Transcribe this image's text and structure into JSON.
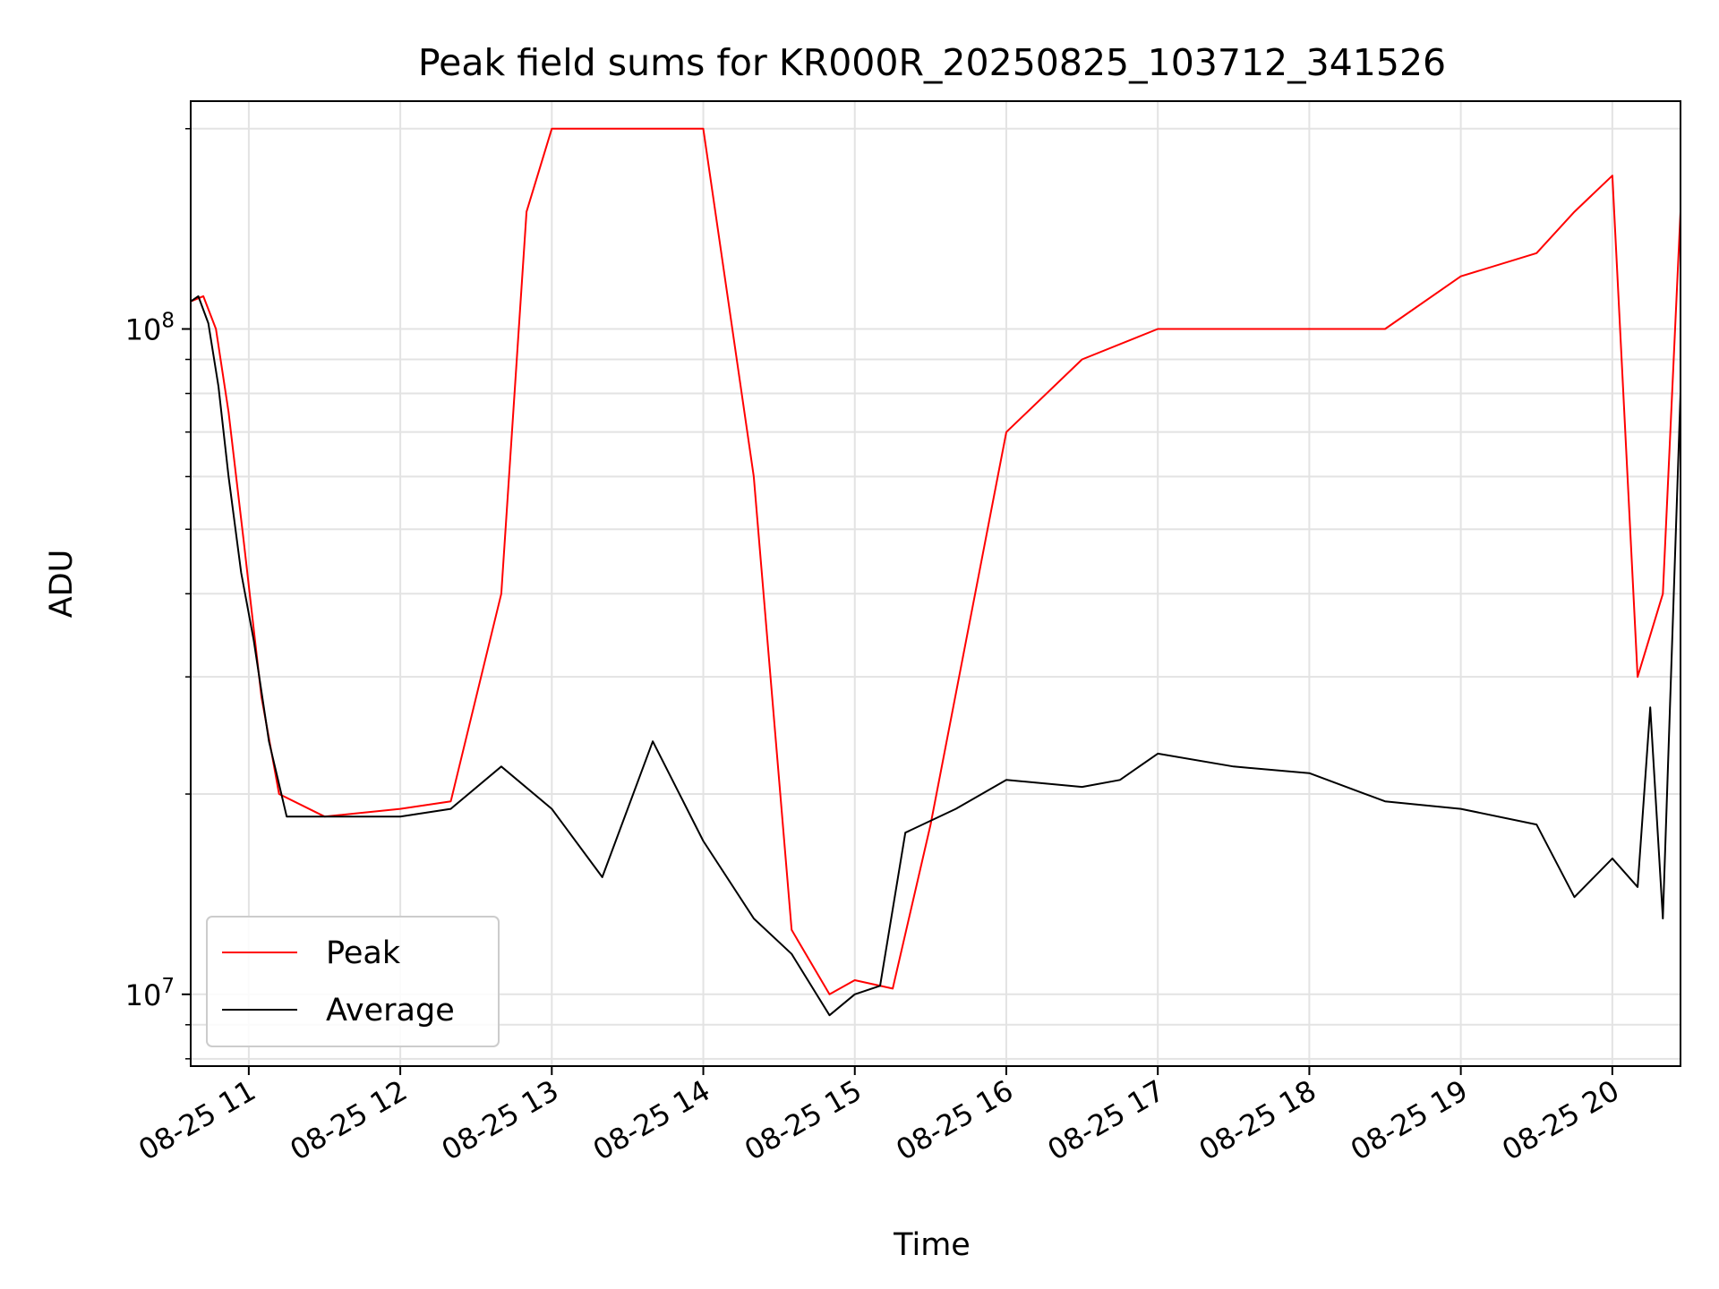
{
  "chart_data": {
    "type": "line",
    "title": "Peak field sums for KR000R_20250825_103712_341526",
    "xlabel": "Time",
    "ylabel": "ADU",
    "yscale": "log",
    "ylim": [
      7800000,
      220000000
    ],
    "xlim": [
      "2025-08-25 10:37",
      "2025-08-25 20:27"
    ],
    "x_ticks": [
      "2025-08-25 11:00",
      "2025-08-25 12:00",
      "2025-08-25 13:00",
      "2025-08-25 14:00",
      "2025-08-25 15:00",
      "2025-08-25 16:00",
      "2025-08-25 17:00",
      "2025-08-25 18:00",
      "2025-08-25 19:00",
      "2025-08-25 20:00"
    ],
    "x_tick_labels": [
      "08-25 11",
      "08-25 12",
      "08-25 13",
      "08-25 14",
      "08-25 15",
      "08-25 16",
      "08-25 17",
      "08-25 18",
      "08-25 19",
      "08-25 20"
    ],
    "y_ticks": [
      10000000,
      100000000
    ],
    "y_tick_labels": [
      {
        "base": "10",
        "exp": "7"
      },
      {
        "base": "10",
        "exp": "8"
      }
    ],
    "grid": true,
    "legend_position": "lower-left",
    "series": [
      {
        "name": "Peak",
        "color": "#ff0000",
        "x": [
          "2025-08-25 10:37",
          "2025-08-25 10:42",
          "2025-08-25 10:47",
          "2025-08-25 10:52",
          "2025-08-25 10:58",
          "2025-08-25 11:05",
          "2025-08-25 11:12",
          "2025-08-25 11:30",
          "2025-08-25 12:00",
          "2025-08-25 12:20",
          "2025-08-25 12:40",
          "2025-08-25 12:50",
          "2025-08-25 13:00",
          "2025-08-25 13:20",
          "2025-08-25 13:40",
          "2025-08-25 14:00",
          "2025-08-25 14:20",
          "2025-08-25 14:35",
          "2025-08-25 14:50",
          "2025-08-25 15:00",
          "2025-08-25 15:15",
          "2025-08-25 15:30",
          "2025-08-25 16:00",
          "2025-08-25 16:30",
          "2025-08-25 17:00",
          "2025-08-25 17:30",
          "2025-08-25 18:00",
          "2025-08-25 18:30",
          "2025-08-25 19:00",
          "2025-08-25 19:30",
          "2025-08-25 19:45",
          "2025-08-25 20:00",
          "2025-08-25 20:10",
          "2025-08-25 20:20",
          "2025-08-25 20:27"
        ],
        "values": [
          110000000,
          112000000,
          100000000,
          75000000,
          48000000,
          28000000,
          20000000,
          18500000,
          19000000,
          19500000,
          40000000,
          150000000,
          200000000,
          200000000,
          200000000,
          200000000,
          60000000,
          12500000,
          10000000,
          10500000,
          10200000,
          18000000,
          70000000,
          90000000,
          100000000,
          100000000,
          100000000,
          100000000,
          120000000,
          130000000,
          150000000,
          170000000,
          30000000,
          40000000,
          150000000
        ]
      },
      {
        "name": "Average",
        "color": "#000000",
        "x": [
          "2025-08-25 10:37",
          "2025-08-25 10:40",
          "2025-08-25 10:44",
          "2025-08-25 10:48",
          "2025-08-25 10:52",
          "2025-08-25 10:57",
          "2025-08-25 11:02",
          "2025-08-25 11:08",
          "2025-08-25 11:15",
          "2025-08-25 11:30",
          "2025-08-25 12:00",
          "2025-08-25 12:20",
          "2025-08-25 12:40",
          "2025-08-25 13:00",
          "2025-08-25 13:20",
          "2025-08-25 13:40",
          "2025-08-25 14:00",
          "2025-08-25 14:20",
          "2025-08-25 14:35",
          "2025-08-25 14:50",
          "2025-08-25 15:00",
          "2025-08-25 15:10",
          "2025-08-25 15:20",
          "2025-08-25 15:40",
          "2025-08-25 16:00",
          "2025-08-25 16:30",
          "2025-08-25 16:45",
          "2025-08-25 17:00",
          "2025-08-25 17:30",
          "2025-08-25 18:00",
          "2025-08-25 18:30",
          "2025-08-25 19:00",
          "2025-08-25 19:30",
          "2025-08-25 19:45",
          "2025-08-25 20:00",
          "2025-08-25 20:10",
          "2025-08-25 20:15",
          "2025-08-25 20:20",
          "2025-08-25 20:27"
        ],
        "values": [
          110000000,
          112000000,
          102000000,
          82000000,
          60000000,
          43000000,
          34000000,
          24000000,
          18500000,
          18500000,
          18500000,
          19000000,
          22000000,
          19000000,
          15000000,
          24000000,
          17000000,
          13000000,
          11500000,
          9300000,
          10000000,
          10300000,
          17500000,
          19000000,
          21000000,
          20500000,
          21000000,
          23000000,
          22000000,
          21500000,
          19500000,
          19000000,
          18000000,
          14000000,
          16000000,
          14500000,
          27000000,
          13000000,
          80000000
        ]
      }
    ]
  }
}
